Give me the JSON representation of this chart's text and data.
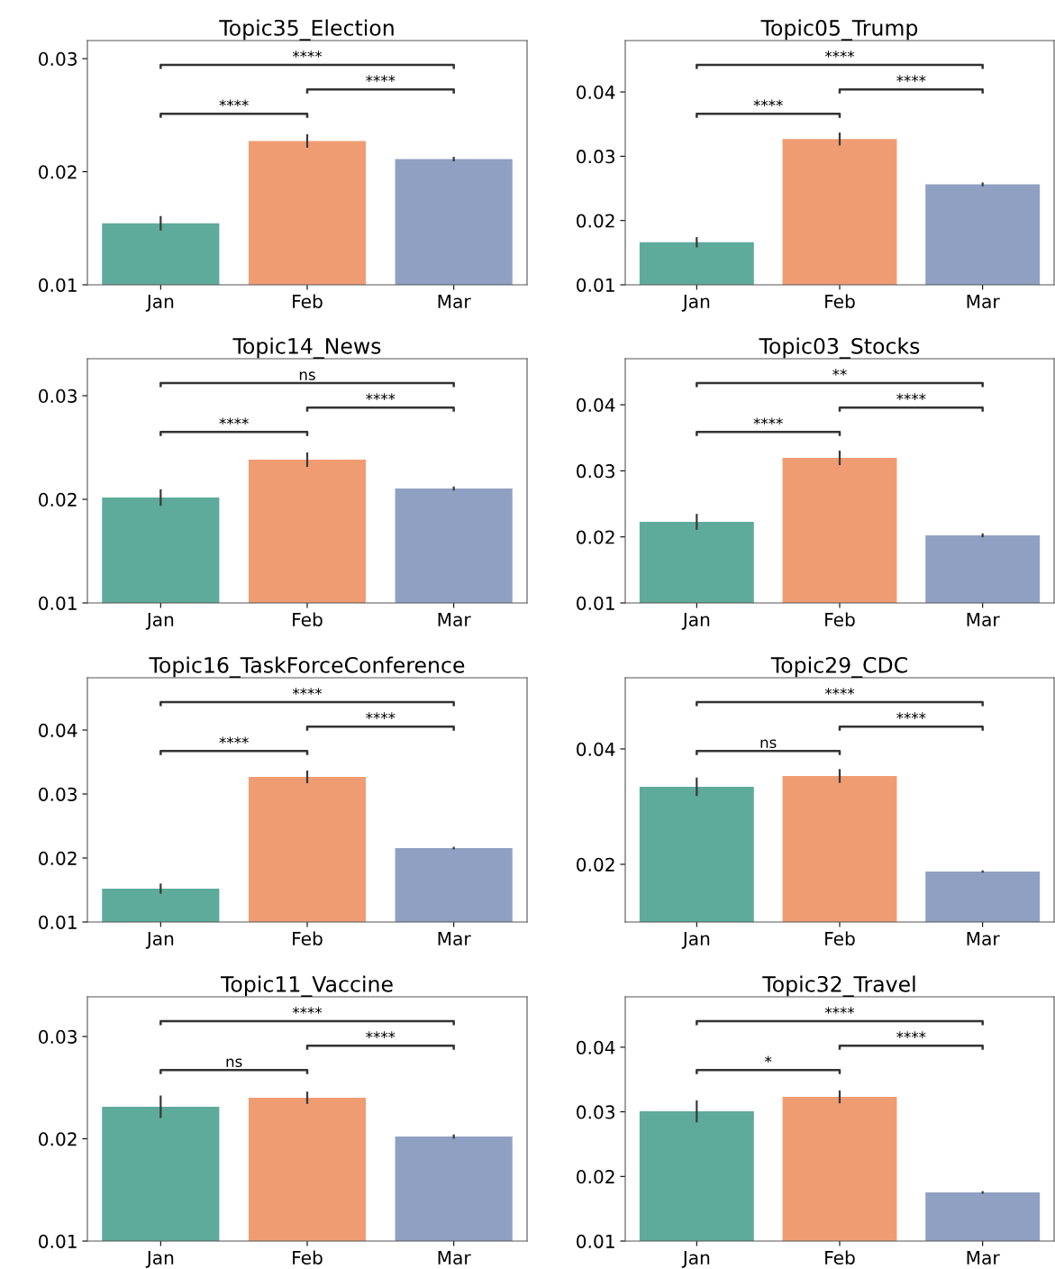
{
  "chart_data": [
    {
      "type": "bar",
      "title": "Topic35_Election",
      "categories": [
        "Jan",
        "Feb",
        "Mar"
      ],
      "values": [
        0.01544,
        0.02272,
        0.02112
      ],
      "errors": [
        0.00064,
        0.0006,
        0.0002
      ],
      "colors": [
        "#5eab9b",
        "#f09c73",
        "#90a0c3"
      ],
      "ylim": [
        0.01,
        0.0316
      ],
      "yticks": [
        0.01,
        0.02,
        0.03
      ],
      "annotations": [
        "****",
        "****",
        "****"
      ]
    },
    {
      "type": "bar",
      "title": "Topic05_Trump",
      "categories": [
        "Jan",
        "Feb",
        "Mar"
      ],
      "values": [
        0.01662,
        0.03268,
        0.02563
      ],
      "errors": [
        0.0008,
        0.001,
        0.0003
      ],
      "colors": [
        "#5eab9b",
        "#f09c73",
        "#90a0c3"
      ],
      "ylim": [
        0.01,
        0.048
      ],
      "yticks": [
        0.01,
        0.02,
        0.03,
        0.04
      ],
      "annotations": [
        "****",
        "****",
        "****"
      ]
    },
    {
      "type": "bar",
      "title": "Topic14_News",
      "categories": [
        "Jan",
        "Feb",
        "Mar"
      ],
      "values": [
        0.02017,
        0.02383,
        0.02104
      ],
      "errors": [
        0.0008,
        0.0007,
        0.0002
      ],
      "colors": [
        "#5eab9b",
        "#f09c73",
        "#90a0c3"
      ],
      "ylim": [
        0.01,
        0.03357
      ],
      "yticks": [
        0.01,
        0.02,
        0.03
      ],
      "annotations": [
        "****",
        "****",
        "ns"
      ]
    },
    {
      "type": "bar",
      "title": "Topic03_Stocks",
      "categories": [
        "Jan",
        "Feb",
        "Mar"
      ],
      "values": [
        0.02228,
        0.03196,
        0.02023
      ],
      "errors": [
        0.0012,
        0.0011,
        0.0003
      ],
      "colors": [
        "#5eab9b",
        "#f09c73",
        "#90a0c3"
      ],
      "ylim": [
        0.01,
        0.04697
      ],
      "yticks": [
        0.01,
        0.02,
        0.03,
        0.04
      ],
      "annotations": [
        "****",
        "****",
        "**"
      ]
    },
    {
      "type": "bar",
      "title": "Topic16_TaskForceConference",
      "categories": [
        "Jan",
        "Feb",
        "Mar"
      ],
      "values": [
        0.01521,
        0.03268,
        0.02155
      ],
      "errors": [
        0.0008,
        0.001,
        0.0002
      ],
      "colors": [
        "#5eab9b",
        "#f09c73",
        "#90a0c3"
      ],
      "ylim": [
        0.01,
        0.04817
      ],
      "yticks": [
        0.01,
        0.02,
        0.03,
        0.04
      ],
      "annotations": [
        "****",
        "****",
        "****"
      ]
    },
    {
      "type": "bar",
      "title": "Topic29_CDC",
      "categories": [
        "Jan",
        "Feb",
        "Mar"
      ],
      "values": [
        0.03344,
        0.03531,
        0.01875
      ],
      "errors": [
        0.0016,
        0.0012,
        0.0002
      ],
      "colors": [
        "#5eab9b",
        "#f09c73",
        "#90a0c3"
      ],
      "ylim": [
        0.01,
        0.05234
      ],
      "yticks": [
        0.02,
        0.04
      ],
      "annotations": [
        "ns",
        "****",
        "****"
      ]
    },
    {
      "type": "bar",
      "title": "Topic11_Vaccine",
      "categories": [
        "Jan",
        "Feb",
        "Mar"
      ],
      "values": [
        0.02313,
        0.02401,
        0.02022
      ],
      "errors": [
        0.0011,
        0.0006,
        0.0002
      ],
      "colors": [
        "#5eab9b",
        "#f09c73",
        "#90a0c3"
      ],
      "ylim": [
        0.01,
        0.03388
      ],
      "yticks": [
        0.01,
        0.02,
        0.03
      ],
      "annotations": [
        "ns",
        "****",
        "****"
      ]
    },
    {
      "type": "bar",
      "title": "Topic32_Travel",
      "categories": [
        "Jan",
        "Feb",
        "Mar"
      ],
      "values": [
        0.03008,
        0.03232,
        0.01753
      ],
      "errors": [
        0.0017,
        0.001,
        0.0002
      ],
      "colors": [
        "#5eab9b",
        "#f09c73",
        "#90a0c3"
      ],
      "ylim": [
        0.01,
        0.0478
      ],
      "yticks": [
        0.01,
        0.02,
        0.03,
        0.04
      ],
      "annotations": [
        "*",
        "****",
        "****"
      ]
    }
  ]
}
